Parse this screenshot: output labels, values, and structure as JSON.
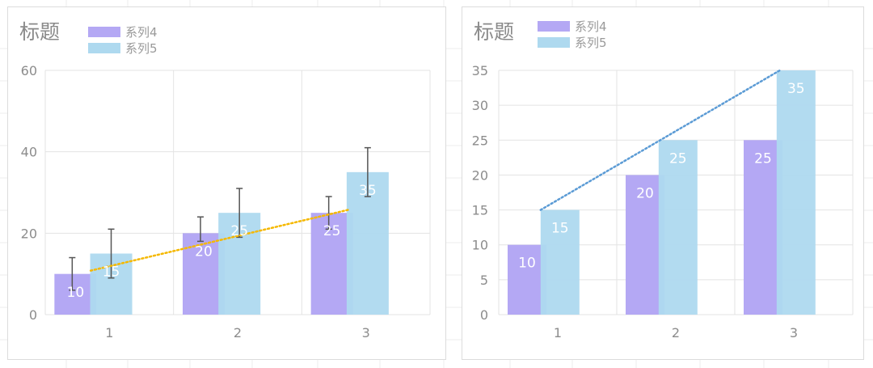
{
  "colors": {
    "series4": "#b4a8f4",
    "series5": "#aed9ef",
    "trend_left": "#f5b800",
    "trend_right": "#5b9bd5",
    "error_bar": "#555555",
    "grid": "#e3e3e3",
    "axis_text": "#8c8c8c",
    "data_label": "#ffffff"
  },
  "chart_data": [
    {
      "type": "bar",
      "title": "标题",
      "categories": [
        "1",
        "2",
        "3"
      ],
      "series": [
        {
          "name": "系列4",
          "values": [
            10,
            20,
            25
          ]
        },
        {
          "name": "系列5",
          "values": [
            15,
            25,
            35
          ],
          "error_bars": [
            {
              "low": 9,
              "high": 21
            },
            {
              "low": 19,
              "high": 31
            },
            {
              "low": 29,
              "high": 41
            }
          ]
        }
      ],
      "series4_error_bars": [
        {
          "low": 6,
          "high": 14
        },
        {
          "low": 18,
          "high": 24
        },
        {
          "low": 21,
          "high": 29
        }
      ],
      "trendline": {
        "series": "系列4",
        "type": "linear",
        "style": "dotted",
        "color": "#f5b800"
      },
      "ylim": [
        0,
        60
      ],
      "yticks": [
        0,
        20,
        40,
        60
      ],
      "grid": true,
      "legend": "top-left"
    },
    {
      "type": "bar",
      "title": "标题",
      "categories": [
        "1",
        "2",
        "3"
      ],
      "series": [
        {
          "name": "系列4",
          "values": [
            10,
            20,
            25
          ]
        },
        {
          "name": "系列5",
          "values": [
            15,
            25,
            35
          ]
        }
      ],
      "trendline": {
        "series": "系列5",
        "type": "linear",
        "style": "dotted",
        "color": "#5b9bd5"
      },
      "ylim": [
        0,
        35
      ],
      "yticks": [
        0,
        5,
        10,
        15,
        20,
        25,
        30,
        35
      ],
      "grid": true,
      "legend": "top-left"
    }
  ]
}
